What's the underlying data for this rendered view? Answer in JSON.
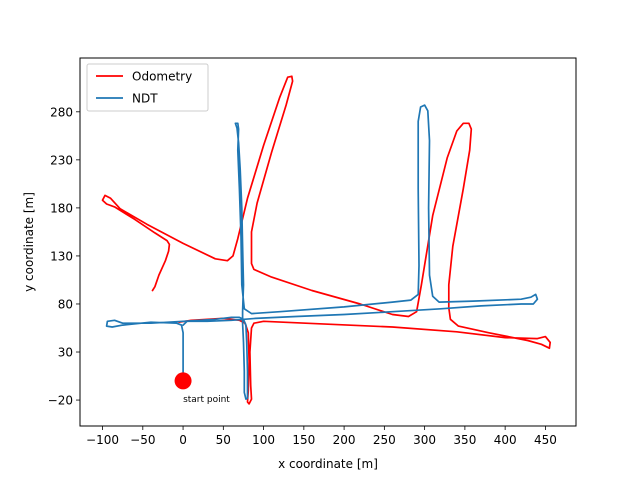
{
  "chart_data": {
    "type": "line",
    "title": "",
    "xlabel": "x coordinate [m]",
    "ylabel": "y coordinate [m]",
    "xlim": [
      -128,
      488
    ],
    "ylim": [
      -47,
      336
    ],
    "xticks": [
      -100,
      -50,
      0,
      50,
      100,
      150,
      200,
      250,
      300,
      350,
      400,
      450
    ],
    "yticks": [
      -20,
      30,
      80,
      130,
      180,
      230,
      280
    ],
    "grid": false,
    "legend_position": "top-left",
    "colors": {
      "odometry": "#ff0000",
      "ndt": "#1f77b4",
      "start": "#ff0000"
    },
    "series": [
      {
        "name": "Odometry",
        "points": [
          [
            -38,
            94
          ],
          [
            -35,
            98
          ],
          [
            -30,
            110
          ],
          [
            -22,
            125
          ],
          [
            -18,
            135
          ],
          [
            -17,
            142
          ],
          [
            -20,
            146
          ],
          [
            -35,
            154
          ],
          [
            -60,
            168
          ],
          [
            -85,
            181
          ],
          [
            -95,
            184
          ],
          [
            -100,
            188
          ],
          [
            -97,
            193
          ],
          [
            -90,
            190
          ],
          [
            -78,
            179
          ],
          [
            -45,
            163
          ],
          [
            0,
            143
          ],
          [
            40,
            127
          ],
          [
            55,
            125
          ],
          [
            62,
            130
          ],
          [
            68,
            148
          ],
          [
            80,
            190
          ],
          [
            100,
            245
          ],
          [
            120,
            295
          ],
          [
            130,
            316
          ],
          [
            135,
            317
          ],
          [
            136,
            312
          ],
          [
            128,
            287
          ],
          [
            110,
            238
          ],
          [
            92,
            185
          ],
          [
            85,
            155
          ],
          [
            85,
            122
          ],
          [
            88,
            116
          ],
          [
            110,
            108
          ],
          [
            160,
            94
          ],
          [
            220,
            80
          ],
          [
            260,
            69
          ],
          [
            280,
            67
          ],
          [
            290,
            72
          ],
          [
            296,
            100
          ],
          [
            310,
            172
          ],
          [
            328,
            232
          ],
          [
            340,
            260
          ],
          [
            348,
            268
          ],
          [
            355,
            268
          ],
          [
            358,
            262
          ],
          [
            356,
            240
          ],
          [
            348,
            200
          ],
          [
            335,
            140
          ],
          [
            330,
            100
          ],
          [
            330,
            76
          ],
          [
            332,
            64
          ],
          [
            342,
            57
          ],
          [
            380,
            50
          ],
          [
            428,
            42
          ],
          [
            445,
            38
          ],
          [
            455,
            34
          ],
          [
            456,
            40
          ],
          [
            450,
            46
          ],
          [
            440,
            44
          ],
          [
            400,
            45
          ],
          [
            340,
            51
          ],
          [
            260,
            56
          ],
          [
            180,
            59
          ],
          [
            100,
            62
          ],
          [
            88,
            60
          ],
          [
            85,
            55
          ],
          [
            83,
            30
          ],
          [
            84,
            -5
          ],
          [
            85,
            -19
          ],
          [
            82,
            -24
          ],
          [
            80,
            -22
          ],
          [
            81,
            -10
          ],
          [
            82,
            20
          ],
          [
            81,
            50
          ],
          [
            77,
            60
          ],
          [
            70,
            63
          ],
          [
            50,
            65
          ],
          [
            10,
            63
          ],
          [
            -5,
            61
          ]
        ]
      },
      {
        "name": "NDT",
        "points": [
          [
            0,
            0
          ],
          [
            0,
            20
          ],
          [
            0,
            50
          ],
          [
            -2,
            58
          ],
          [
            -8,
            60
          ],
          [
            -40,
            61
          ],
          [
            -75,
            58
          ],
          [
            -88,
            56
          ],
          [
            -95,
            57
          ],
          [
            -94,
            62
          ],
          [
            -85,
            63
          ],
          [
            -75,
            60
          ],
          [
            -40,
            60
          ],
          [
            0,
            62
          ],
          [
            40,
            64
          ],
          [
            60,
            66
          ],
          [
            70,
            66
          ],
          [
            75,
            64
          ],
          [
            78,
            58
          ],
          [
            79,
            40
          ],
          [
            80,
            10
          ],
          [
            80,
            -10
          ],
          [
            80,
            -18
          ],
          [
            78,
            -19
          ],
          [
            76,
            -12
          ],
          [
            76,
            10
          ],
          [
            75,
            40
          ],
          [
            74,
            60
          ],
          [
            74,
            72
          ],
          [
            75,
            100
          ],
          [
            74,
            140
          ],
          [
            73,
            180
          ],
          [
            71,
            220
          ],
          [
            69,
            248
          ],
          [
            67,
            263
          ],
          [
            65,
            268
          ],
          [
            68,
            268
          ],
          [
            69,
            262
          ],
          [
            68,
            240
          ],
          [
            70,
            200
          ],
          [
            72,
            150
          ],
          [
            73,
            100
          ],
          [
            76,
            75
          ],
          [
            85,
            70
          ],
          [
            120,
            72
          ],
          [
            200,
            77
          ],
          [
            260,
            82
          ],
          [
            283,
            84
          ],
          [
            292,
            90
          ],
          [
            293,
            120
          ],
          [
            292,
            200
          ],
          [
            292,
            270
          ],
          [
            295,
            285
          ],
          [
            300,
            287
          ],
          [
            304,
            281
          ],
          [
            306,
            250
          ],
          [
            305,
            180
          ],
          [
            306,
            110
          ],
          [
            310,
            88
          ],
          [
            318,
            82
          ],
          [
            360,
            83
          ],
          [
            420,
            85
          ],
          [
            432,
            87
          ],
          [
            438,
            90
          ],
          [
            440,
            85
          ],
          [
            435,
            80
          ],
          [
            420,
            80
          ],
          [
            370,
            78
          ],
          [
            320,
            75
          ],
          [
            260,
            72
          ],
          [
            200,
            69
          ],
          [
            140,
            67
          ],
          [
            90,
            65
          ],
          [
            60,
            63
          ],
          [
            30,
            62
          ],
          [
            5,
            62
          ],
          [
            0,
            58
          ]
        ]
      }
    ],
    "start_point": {
      "x": 0,
      "y": 0,
      "label": "start point"
    }
  }
}
